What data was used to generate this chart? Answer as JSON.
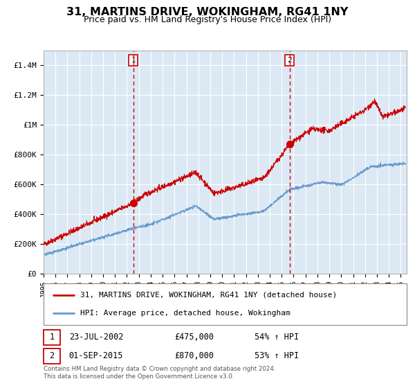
{
  "title": "31, MARTINS DRIVE, WOKINGHAM, RG41 1NY",
  "subtitle": "Price paid vs. HM Land Registry's House Price Index (HPI)",
  "title_fontsize": 12,
  "subtitle_fontsize": 9.5,
  "plot_bg_color": "#dce9f5",
  "grid_color": "#ffffff",
  "red_color": "#cc0000",
  "blue_color": "#6699cc",
  "ylim": [
    0,
    1500000
  ],
  "yticks": [
    0,
    200000,
    400000,
    600000,
    800000,
    1000000,
    1200000,
    1400000
  ],
  "ytick_labels": [
    "£0",
    "£200K",
    "£400K",
    "£600K",
    "£800K",
    "£1M",
    "£1.2M",
    "£1.4M"
  ],
  "sale1_year": 2002.55,
  "sale1_price": 475000,
  "sale2_year": 2015.67,
  "sale2_price": 870000,
  "legend_label_red": "31, MARTINS DRIVE, WOKINGHAM, RG41 1NY (detached house)",
  "legend_label_blue": "HPI: Average price, detached house, Wokingham",
  "footnote": "Contains HM Land Registry data © Crown copyright and database right 2024.\nThis data is licensed under the Open Government Licence v3.0.",
  "xstart": 1995.0,
  "xend": 2025.5
}
